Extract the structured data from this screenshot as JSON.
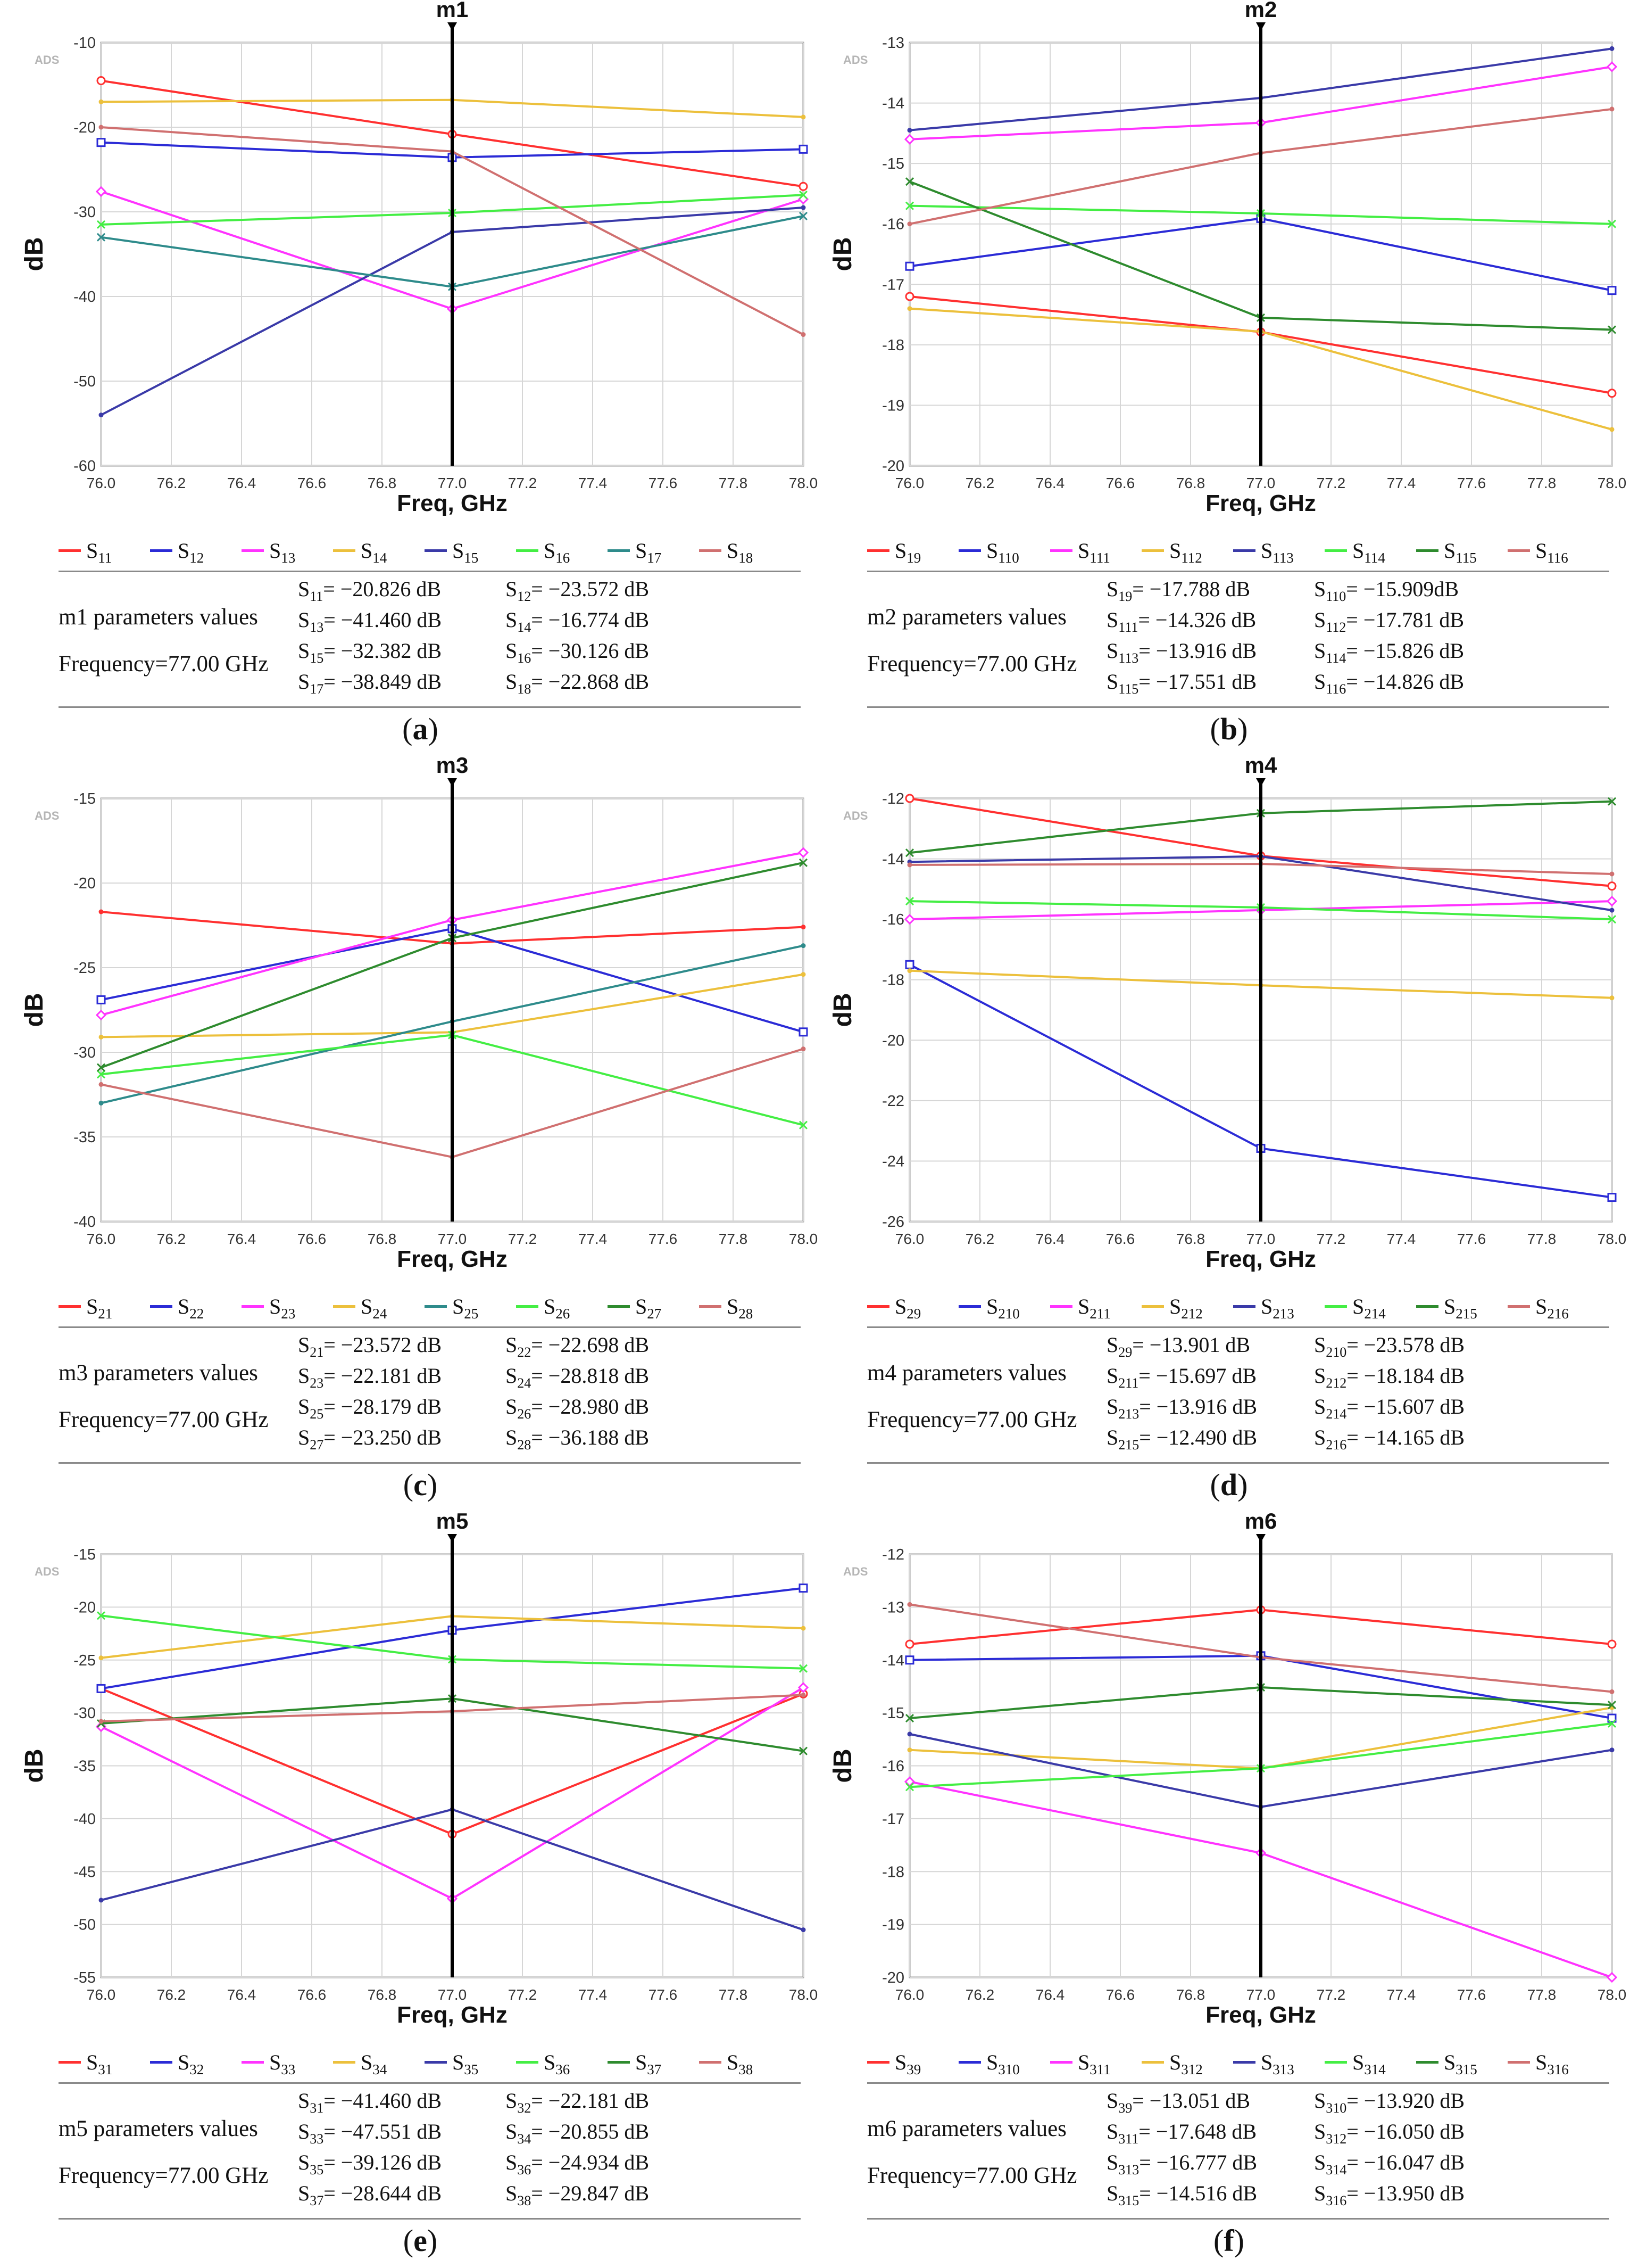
{
  "xlabel": "Freq, GHz",
  "ylabel": "dB",
  "watermark": "ADS",
  "frequency_label": "Frequency=77.00 GHz",
  "colors": [
    "#ff3030",
    "#2b2bd6",
    "#ff33ff",
    "#ecc03c",
    "#3a3aa8",
    "#44ee44",
    "#2e8b2e",
    "#d07070"
  ],
  "chart_data": [
    {
      "type": "line",
      "marker": "m1",
      "caption": "a",
      "params_title": "m1 parameters values",
      "x": [
        76.0,
        77.0,
        78.0
      ],
      "xticks": [
        "76.0",
        "76.2",
        "76.4",
        "76.6",
        "76.8",
        "77.0",
        "77.2",
        "77.4",
        "77.6",
        "77.8",
        "78.0"
      ],
      "ylim": [
        -60,
        -10
      ],
      "yticks": [
        -60,
        -50,
        -40,
        -30,
        -20,
        -10
      ],
      "series": [
        {
          "base": "S",
          "sub": "11",
          "values": [
            -14.5,
            -20.826,
            -27.0
          ],
          "color": "#ff3030",
          "mk": "o",
          "rv": "−20.826 dB"
        },
        {
          "base": "S",
          "sub": "12",
          "values": [
            -21.8,
            -23.572,
            -22.6
          ],
          "color": "#2b2bd6",
          "mk": "s",
          "rv": "−23.572 dB"
        },
        {
          "base": "S",
          "sub": "13",
          "values": [
            -27.6,
            -41.46,
            -28.5
          ],
          "color": "#ff33ff",
          "mk": "d",
          "rv": "−41.460 dB"
        },
        {
          "base": "S",
          "sub": "14",
          "values": [
            -17.0,
            -16.774,
            -18.8
          ],
          "color": "#ecc03c",
          "mk": "n",
          "rv": "−16.774 dB"
        },
        {
          "base": "S",
          "sub": "15",
          "values": [
            -54.0,
            -32.382,
            -29.5
          ],
          "color": "#3a3aa8",
          "mk": "n",
          "rv": "−32.382 dB"
        },
        {
          "base": "S",
          "sub": "16",
          "values": [
            -31.5,
            -30.126,
            -28.0
          ],
          "color": "#44ee44",
          "mk": "x",
          "rv": "−30.126 dB"
        },
        {
          "base": "S",
          "sub": "17",
          "values": [
            -33.0,
            -38.849,
            -30.5
          ],
          "color": "#2e8b8b",
          "mk": "x",
          "rv": "−38.849 dB"
        },
        {
          "base": "S",
          "sub": "18",
          "values": [
            -20.0,
            -22.868,
            -44.5
          ],
          "color": "#d07070",
          "mk": "n",
          "rv": "−22.868 dB"
        }
      ]
    },
    {
      "type": "line",
      "marker": "m2",
      "caption": "b",
      "params_title": "m2 parameters values",
      "x": [
        76.0,
        77.0,
        78.0
      ],
      "xticks": [
        "76.0",
        "76.2",
        "76.4",
        "76.6",
        "76.8",
        "77.0",
        "77.2",
        "77.4",
        "77.6",
        "77.8",
        "78.0"
      ],
      "ylim": [
        -20,
        -13
      ],
      "yticks": [
        -20,
        -19,
        -18,
        -17,
        -16,
        -15,
        -14,
        -13
      ],
      "series": [
        {
          "base": "S",
          "sub": "19",
          "values": [
            -17.2,
            -17.788,
            -18.8
          ],
          "color": "#ff3030",
          "mk": "o",
          "rv": "−17.788 dB"
        },
        {
          "base": "S",
          "sub": "110",
          "values": [
            -16.7,
            -15.909,
            -17.1
          ],
          "color": "#2b2bd6",
          "mk": "s",
          "rv": "−15.909dB"
        },
        {
          "base": "S",
          "sub": "111",
          "values": [
            -14.6,
            -14.326,
            -13.4
          ],
          "color": "#ff33ff",
          "mk": "d",
          "rv": "−14.326 dB"
        },
        {
          "base": "S",
          "sub": "112",
          "values": [
            -17.4,
            -17.781,
            -19.4
          ],
          "color": "#ecc03c",
          "mk": "n",
          "rv": "−17.781 dB"
        },
        {
          "base": "S",
          "sub": "113",
          "values": [
            -14.45,
            -13.916,
            -13.1
          ],
          "color": "#3a3aa8",
          "mk": "n",
          "rv": "−13.916 dB"
        },
        {
          "base": "S",
          "sub": "114",
          "values": [
            -15.7,
            -15.826,
            -16.0
          ],
          "color": "#44ee44",
          "mk": "x",
          "rv": "−15.826 dB"
        },
        {
          "base": "S",
          "sub": "115",
          "values": [
            -15.3,
            -17.551,
            -17.75
          ],
          "color": "#2e8b2e",
          "mk": "x",
          "rv": "−17.551 dB"
        },
        {
          "base": "S",
          "sub": "116",
          "values": [
            -16.0,
            -14.826,
            -14.1
          ],
          "color": "#d07070",
          "mk": "n",
          "rv": "−14.826 dB"
        }
      ]
    },
    {
      "type": "line",
      "marker": "m3",
      "caption": "c",
      "params_title": "m3 parameters values",
      "x": [
        76.0,
        77.0,
        78.0
      ],
      "xticks": [
        "76.0",
        "76.2",
        "76.4",
        "76.6",
        "76.8",
        "77.0",
        "77.2",
        "77.4",
        "77.6",
        "77.8",
        "78.0"
      ],
      "ylim": [
        -40,
        -15
      ],
      "yticks": [
        -40,
        -35,
        -30,
        -25,
        -20,
        -15
      ],
      "series": [
        {
          "base": "S",
          "sub": "21",
          "values": [
            -21.7,
            -23.572,
            -22.6
          ],
          "color": "#ff3030",
          "mk": "n",
          "rv": "−23.572 dB"
        },
        {
          "base": "S",
          "sub": "22",
          "values": [
            -26.9,
            -22.698,
            -28.8
          ],
          "color": "#2b2bd6",
          "mk": "s",
          "rv": "−22.698 dB"
        },
        {
          "base": "S",
          "sub": "23",
          "values": [
            -27.8,
            -22.181,
            -18.2
          ],
          "color": "#ff33ff",
          "mk": "d",
          "rv": "−22.181 dB"
        },
        {
          "base": "S",
          "sub": "24",
          "values": [
            -29.1,
            -28.818,
            -25.4
          ],
          "color": "#ecc03c",
          "mk": "n",
          "rv": "−28.818 dB"
        },
        {
          "base": "S",
          "sub": "25",
          "values": [
            -33.0,
            -28.179,
            -23.7
          ],
          "color": "#2e8b8b",
          "mk": "n",
          "rv": "−28.179 dB"
        },
        {
          "base": "S",
          "sub": "26",
          "values": [
            -31.3,
            -28.98,
            -34.3
          ],
          "color": "#44ee44",
          "mk": "x",
          "rv": "−28.980 dB"
        },
        {
          "base": "S",
          "sub": "27",
          "values": [
            -30.9,
            -23.25,
            -18.8
          ],
          "color": "#2e8b2e",
          "mk": "x",
          "rv": "−23.250 dB"
        },
        {
          "base": "S",
          "sub": "28",
          "values": [
            -31.9,
            -36.188,
            -29.8
          ],
          "color": "#d07070",
          "mk": "n",
          "rv": "−36.188 dB"
        }
      ]
    },
    {
      "type": "line",
      "marker": "m4",
      "caption": "d",
      "params_title": "m4 parameters values",
      "x": [
        76.0,
        77.0,
        78.0
      ],
      "xticks": [
        "76.0",
        "76.2",
        "76.4",
        "76.6",
        "76.8",
        "77.0",
        "77.2",
        "77.4",
        "77.6",
        "77.8",
        "78.0"
      ],
      "ylim": [
        -26,
        -12
      ],
      "yticks": [
        -26,
        -24,
        -22,
        -20,
        -18,
        -16,
        -14,
        -12
      ],
      "series": [
        {
          "base": "S",
          "sub": "29",
          "values": [
            -12.0,
            -13.901,
            -14.9
          ],
          "color": "#ff3030",
          "mk": "o",
          "rv": "−13.901 dB"
        },
        {
          "base": "S",
          "sub": "210",
          "values": [
            -17.5,
            -23.578,
            -25.2
          ],
          "color": "#2b2bd6",
          "mk": "s",
          "rv": "−23.578 dB"
        },
        {
          "base": "S",
          "sub": "211",
          "values": [
            -16.0,
            -15.697,
            -15.4
          ],
          "color": "#ff33ff",
          "mk": "d",
          "rv": "−15.697 dB"
        },
        {
          "base": "S",
          "sub": "212",
          "values": [
            -17.7,
            -18.184,
            -18.6
          ],
          "color": "#ecc03c",
          "mk": "n",
          "rv": "−18.184 dB"
        },
        {
          "base": "S",
          "sub": "213",
          "values": [
            -14.1,
            -13.916,
            -15.7
          ],
          "color": "#3a3aa8",
          "mk": "n",
          "rv": "−13.916 dB"
        },
        {
          "base": "S",
          "sub": "214",
          "values": [
            -15.4,
            -15.607,
            -16.0
          ],
          "color": "#44ee44",
          "mk": "x",
          "rv": "−15.607 dB"
        },
        {
          "base": "S",
          "sub": "215",
          "values": [
            -13.8,
            -12.49,
            -12.1
          ],
          "color": "#2e8b2e",
          "mk": "x",
          "rv": "−12.490 dB"
        },
        {
          "base": "S",
          "sub": "216",
          "values": [
            -14.2,
            -14.165,
            -14.5
          ],
          "color": "#d07070",
          "mk": "n",
          "rv": "−14.165 dB"
        }
      ]
    },
    {
      "type": "line",
      "marker": "m5",
      "caption": "e",
      "params_title": "m5 parameters values",
      "x": [
        76.0,
        77.0,
        78.0
      ],
      "xticks": [
        "76.0",
        "76.2",
        "76.4",
        "76.6",
        "76.8",
        "77.0",
        "77.2",
        "77.4",
        "77.6",
        "77.8",
        "78.0"
      ],
      "ylim": [
        -55,
        -15
      ],
      "yticks": [
        -55,
        -50,
        -45,
        -40,
        -35,
        -30,
        -25,
        -20,
        -15
      ],
      "series": [
        {
          "base": "S",
          "sub": "31",
          "values": [
            -27.7,
            -41.46,
            -28.2
          ],
          "color": "#ff3030",
          "mk": "o",
          "rv": "−41.460 dB"
        },
        {
          "base": "S",
          "sub": "32",
          "values": [
            -27.7,
            -22.181,
            -18.2
          ],
          "color": "#2b2bd6",
          "mk": "s",
          "rv": "−22.181 dB"
        },
        {
          "base": "S",
          "sub": "33",
          "values": [
            -31.3,
            -47.551,
            -27.6
          ],
          "color": "#ff33ff",
          "mk": "d",
          "rv": "−47.551 dB"
        },
        {
          "base": "S",
          "sub": "34",
          "values": [
            -24.8,
            -20.855,
            -22.0
          ],
          "color": "#ecc03c",
          "mk": "n",
          "rv": "−20.855 dB"
        },
        {
          "base": "S",
          "sub": "35",
          "values": [
            -47.7,
            -39.126,
            -50.5
          ],
          "color": "#3a3aa8",
          "mk": "n",
          "rv": "−39.126 dB"
        },
        {
          "base": "S",
          "sub": "36",
          "values": [
            -20.8,
            -24.934,
            -25.8
          ],
          "color": "#44ee44",
          "mk": "x",
          "rv": "−24.934 dB"
        },
        {
          "base": "S",
          "sub": "37",
          "values": [
            -31.0,
            -28.644,
            -33.6
          ],
          "color": "#2e8b2e",
          "mk": "x",
          "rv": "−28.644 dB"
        },
        {
          "base": "S",
          "sub": "38",
          "values": [
            -30.8,
            -29.847,
            -28.3
          ],
          "color": "#d07070",
          "mk": "n",
          "rv": "−29.847 dB"
        }
      ]
    },
    {
      "type": "line",
      "marker": "m6",
      "caption": "f",
      "params_title": "m6 parameters values",
      "x": [
        76.0,
        77.0,
        78.0
      ],
      "xticks": [
        "76.0",
        "76.2",
        "76.4",
        "76.6",
        "76.8",
        "77.0",
        "77.2",
        "77.4",
        "77.6",
        "77.8",
        "78.0"
      ],
      "ylim": [
        -20,
        -12
      ],
      "yticks": [
        -20,
        -19,
        -18,
        -17,
        -16,
        -15,
        -14,
        -13,
        -12
      ],
      "series": [
        {
          "base": "S",
          "sub": "39",
          "values": [
            -13.7,
            -13.051,
            -13.7
          ],
          "color": "#ff3030",
          "mk": "o",
          "rv": "−13.051 dB"
        },
        {
          "base": "S",
          "sub": "310",
          "values": [
            -14.0,
            -13.92,
            -15.1
          ],
          "color": "#2b2bd6",
          "mk": "s",
          "rv": "−13.920 dB"
        },
        {
          "base": "S",
          "sub": "311",
          "values": [
            -16.3,
            -17.648,
            -20.0
          ],
          "color": "#ff33ff",
          "mk": "d",
          "rv": "−17.648 dB"
        },
        {
          "base": "S",
          "sub": "312",
          "values": [
            -15.7,
            -16.05,
            -14.9
          ],
          "color": "#ecc03c",
          "mk": "n",
          "rv": "−16.050 dB"
        },
        {
          "base": "S",
          "sub": "313",
          "values": [
            -15.4,
            -16.777,
            -15.7
          ],
          "color": "#3a3aa8",
          "mk": "n",
          "rv": "−16.777 dB"
        },
        {
          "base": "S",
          "sub": "314",
          "values": [
            -16.4,
            -16.047,
            -15.2
          ],
          "color": "#44ee44",
          "mk": "x",
          "rv": "−16.047 dB"
        },
        {
          "base": "S",
          "sub": "315",
          "values": [
            -15.1,
            -14.516,
            -14.85
          ],
          "color": "#2e8b2e",
          "mk": "x",
          "rv": "−14.516 dB"
        },
        {
          "base": "S",
          "sub": "316",
          "values": [
            -12.95,
            -13.95,
            -14.6
          ],
          "color": "#d07070",
          "mk": "n",
          "rv": "−13.950 dB"
        }
      ]
    }
  ]
}
